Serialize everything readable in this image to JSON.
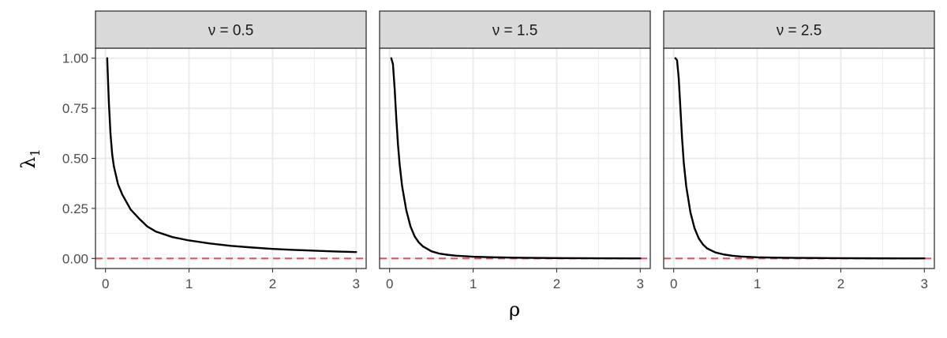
{
  "chart_data": {
    "type": "line",
    "facets": [
      {
        "strip_label": "ν = 0.5",
        "series": [
          {
            "x": [
              0.02,
              0.04,
              0.06,
              0.08,
              0.1,
              0.15,
              0.2,
              0.3,
              0.4,
              0.5,
              0.6,
              0.8,
              1.0,
              1.25,
              1.5,
              1.75,
              2.0,
              2.25,
              2.5,
              2.75,
              3.0
            ],
            "y": [
              1.0,
              0.78,
              0.62,
              0.52,
              0.46,
              0.37,
              0.32,
              0.245,
              0.2,
              0.16,
              0.135,
              0.107,
              0.09,
              0.075,
              0.063,
              0.055,
              0.048,
              0.043,
              0.039,
              0.035,
              0.032
            ]
          }
        ]
      },
      {
        "strip_label": "ν = 1.5",
        "series": [
          {
            "x": [
              0.02,
              0.04,
              0.06,
              0.08,
              0.1,
              0.12,
              0.15,
              0.2,
              0.25,
              0.3,
              0.35,
              0.4,
              0.5,
              0.6,
              0.7,
              0.8,
              1.0,
              1.25,
              1.5,
              2.0,
              2.5,
              3.0
            ],
            "y": [
              1.0,
              0.97,
              0.85,
              0.7,
              0.57,
              0.47,
              0.36,
              0.24,
              0.16,
              0.11,
              0.08,
              0.06,
              0.036,
              0.024,
              0.018,
              0.014,
              0.009,
              0.006,
              0.004,
              0.002,
              0.001,
              0.0005
            ]
          }
        ]
      },
      {
        "strip_label": "ν = 2.5",
        "series": [
          {
            "x": [
              0.02,
              0.04,
              0.06,
              0.08,
              0.1,
              0.12,
              0.15,
              0.2,
              0.25,
              0.3,
              0.35,
              0.4,
              0.5,
              0.6,
              0.7,
              0.8,
              1.0,
              1.25,
              1.5,
              2.0,
              2.5,
              3.0
            ],
            "y": [
              1.0,
              0.99,
              0.9,
              0.75,
              0.6,
              0.48,
              0.36,
              0.23,
              0.15,
              0.1,
              0.07,
              0.05,
              0.03,
              0.02,
              0.014,
              0.01,
              0.006,
              0.004,
              0.003,
              0.0015,
              0.0008,
              0.0004
            ]
          }
        ]
      }
    ],
    "xlim": [
      -0.12,
      3.12
    ],
    "ylim": [
      -0.05,
      1.05
    ],
    "x_ticks": [
      0,
      1,
      2,
      3
    ],
    "x_tick_labels": [
      "0",
      "1",
      "2",
      "3"
    ],
    "y_ticks": [
      0,
      0.25,
      0.5,
      0.75,
      1.0
    ],
    "y_tick_labels": [
      "0.00",
      "0.25",
      "0.50",
      "0.75",
      "1.00"
    ],
    "reference_line": {
      "y": 0,
      "style": "dashed",
      "color": "#e05468"
    },
    "curve_color": "#000000",
    "grid": true,
    "xlabel": "ρ",
    "ylabel_main": "λ",
    "ylabel_sub": "1",
    "strip_fill": "#d9d9d9",
    "panel_border": "#333333",
    "grid_color": "#ebebeb"
  }
}
